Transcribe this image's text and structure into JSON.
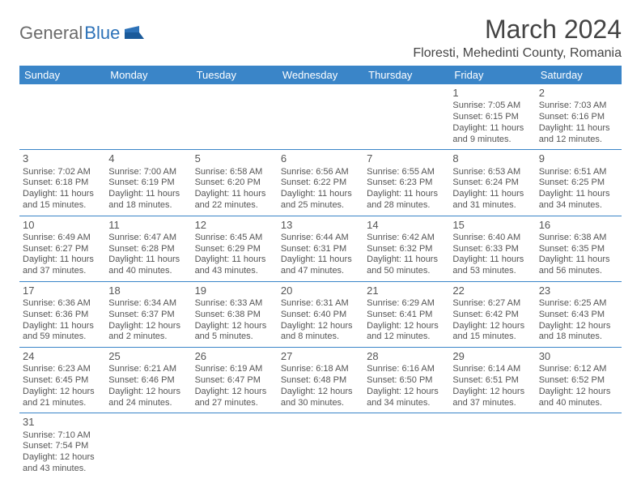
{
  "logo": {
    "general": "General",
    "blue": "Blue"
  },
  "title": "March 2024",
  "location": "Floresti, Mehedinti County, Romania",
  "colors": {
    "header_bg": "#3a85c8",
    "header_text": "#ffffff",
    "border": "#3a85c8",
    "text": "#555555",
    "background": "#ffffff"
  },
  "day_headers": [
    "Sunday",
    "Monday",
    "Tuesday",
    "Wednesday",
    "Thursday",
    "Friday",
    "Saturday"
  ],
  "weeks": [
    [
      null,
      null,
      null,
      null,
      null,
      {
        "n": "1",
        "sr": "Sunrise: 7:05 AM",
        "ss": "Sunset: 6:15 PM",
        "dl": "Daylight: 11 hours and 9 minutes."
      },
      {
        "n": "2",
        "sr": "Sunrise: 7:03 AM",
        "ss": "Sunset: 6:16 PM",
        "dl": "Daylight: 11 hours and 12 minutes."
      }
    ],
    [
      {
        "n": "3",
        "sr": "Sunrise: 7:02 AM",
        "ss": "Sunset: 6:18 PM",
        "dl": "Daylight: 11 hours and 15 minutes."
      },
      {
        "n": "4",
        "sr": "Sunrise: 7:00 AM",
        "ss": "Sunset: 6:19 PM",
        "dl": "Daylight: 11 hours and 18 minutes."
      },
      {
        "n": "5",
        "sr": "Sunrise: 6:58 AM",
        "ss": "Sunset: 6:20 PM",
        "dl": "Daylight: 11 hours and 22 minutes."
      },
      {
        "n": "6",
        "sr": "Sunrise: 6:56 AM",
        "ss": "Sunset: 6:22 PM",
        "dl": "Daylight: 11 hours and 25 minutes."
      },
      {
        "n": "7",
        "sr": "Sunrise: 6:55 AM",
        "ss": "Sunset: 6:23 PM",
        "dl": "Daylight: 11 hours and 28 minutes."
      },
      {
        "n": "8",
        "sr": "Sunrise: 6:53 AM",
        "ss": "Sunset: 6:24 PM",
        "dl": "Daylight: 11 hours and 31 minutes."
      },
      {
        "n": "9",
        "sr": "Sunrise: 6:51 AM",
        "ss": "Sunset: 6:25 PM",
        "dl": "Daylight: 11 hours and 34 minutes."
      }
    ],
    [
      {
        "n": "10",
        "sr": "Sunrise: 6:49 AM",
        "ss": "Sunset: 6:27 PM",
        "dl": "Daylight: 11 hours and 37 minutes."
      },
      {
        "n": "11",
        "sr": "Sunrise: 6:47 AM",
        "ss": "Sunset: 6:28 PM",
        "dl": "Daylight: 11 hours and 40 minutes."
      },
      {
        "n": "12",
        "sr": "Sunrise: 6:45 AM",
        "ss": "Sunset: 6:29 PM",
        "dl": "Daylight: 11 hours and 43 minutes."
      },
      {
        "n": "13",
        "sr": "Sunrise: 6:44 AM",
        "ss": "Sunset: 6:31 PM",
        "dl": "Daylight: 11 hours and 47 minutes."
      },
      {
        "n": "14",
        "sr": "Sunrise: 6:42 AM",
        "ss": "Sunset: 6:32 PM",
        "dl": "Daylight: 11 hours and 50 minutes."
      },
      {
        "n": "15",
        "sr": "Sunrise: 6:40 AM",
        "ss": "Sunset: 6:33 PM",
        "dl": "Daylight: 11 hours and 53 minutes."
      },
      {
        "n": "16",
        "sr": "Sunrise: 6:38 AM",
        "ss": "Sunset: 6:35 PM",
        "dl": "Daylight: 11 hours and 56 minutes."
      }
    ],
    [
      {
        "n": "17",
        "sr": "Sunrise: 6:36 AM",
        "ss": "Sunset: 6:36 PM",
        "dl": "Daylight: 11 hours and 59 minutes."
      },
      {
        "n": "18",
        "sr": "Sunrise: 6:34 AM",
        "ss": "Sunset: 6:37 PM",
        "dl": "Daylight: 12 hours and 2 minutes."
      },
      {
        "n": "19",
        "sr": "Sunrise: 6:33 AM",
        "ss": "Sunset: 6:38 PM",
        "dl": "Daylight: 12 hours and 5 minutes."
      },
      {
        "n": "20",
        "sr": "Sunrise: 6:31 AM",
        "ss": "Sunset: 6:40 PM",
        "dl": "Daylight: 12 hours and 8 minutes."
      },
      {
        "n": "21",
        "sr": "Sunrise: 6:29 AM",
        "ss": "Sunset: 6:41 PM",
        "dl": "Daylight: 12 hours and 12 minutes."
      },
      {
        "n": "22",
        "sr": "Sunrise: 6:27 AM",
        "ss": "Sunset: 6:42 PM",
        "dl": "Daylight: 12 hours and 15 minutes."
      },
      {
        "n": "23",
        "sr": "Sunrise: 6:25 AM",
        "ss": "Sunset: 6:43 PM",
        "dl": "Daylight: 12 hours and 18 minutes."
      }
    ],
    [
      {
        "n": "24",
        "sr": "Sunrise: 6:23 AM",
        "ss": "Sunset: 6:45 PM",
        "dl": "Daylight: 12 hours and 21 minutes."
      },
      {
        "n": "25",
        "sr": "Sunrise: 6:21 AM",
        "ss": "Sunset: 6:46 PM",
        "dl": "Daylight: 12 hours and 24 minutes."
      },
      {
        "n": "26",
        "sr": "Sunrise: 6:19 AM",
        "ss": "Sunset: 6:47 PM",
        "dl": "Daylight: 12 hours and 27 minutes."
      },
      {
        "n": "27",
        "sr": "Sunrise: 6:18 AM",
        "ss": "Sunset: 6:48 PM",
        "dl": "Daylight: 12 hours and 30 minutes."
      },
      {
        "n": "28",
        "sr": "Sunrise: 6:16 AM",
        "ss": "Sunset: 6:50 PM",
        "dl": "Daylight: 12 hours and 34 minutes."
      },
      {
        "n": "29",
        "sr": "Sunrise: 6:14 AM",
        "ss": "Sunset: 6:51 PM",
        "dl": "Daylight: 12 hours and 37 minutes."
      },
      {
        "n": "30",
        "sr": "Sunrise: 6:12 AM",
        "ss": "Sunset: 6:52 PM",
        "dl": "Daylight: 12 hours and 40 minutes."
      }
    ],
    [
      {
        "n": "31",
        "sr": "Sunrise: 7:10 AM",
        "ss": "Sunset: 7:54 PM",
        "dl": "Daylight: 12 hours and 43 minutes."
      },
      null,
      null,
      null,
      null,
      null,
      null
    ]
  ]
}
